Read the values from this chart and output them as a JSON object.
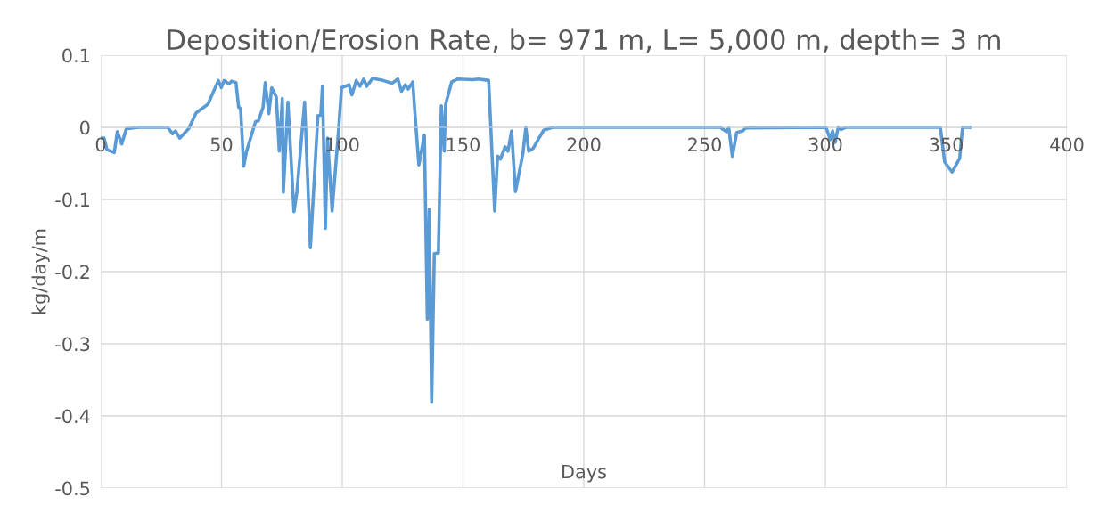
{
  "chart_data": {
    "type": "line",
    "title": "Deposition/Erosion Rate, b= 971 m, L= 5,000 m, depth= 3 m",
    "xlabel": "Days",
    "ylabel": "kg/day/m",
    "x": [
      0,
      1.4,
      2.6,
      5.6,
      6.9,
      8.7,
      10.6,
      15.5,
      27.8,
      29.7,
      31,
      32.7,
      36.4,
      39.5,
      44.4,
      48.7,
      49.9,
      51.1,
      53,
      54.2,
      56,
      57.1,
      57.9,
      59.2,
      60.4,
      64.1,
      65.3,
      67.2,
      68.1,
      69.6,
      70.8,
      72.7,
      73.9,
      75.2,
      75.6,
      77.5,
      80,
      81.2,
      84.4,
      86.8,
      89.9,
      91.1,
      91.8,
      93,
      93.9,
      95.8,
      98.5,
      99.7,
      102.8,
      104,
      105.8,
      107.3,
      108.9,
      110.1,
      112.6,
      116.9,
      120.6,
      123,
      124.5,
      126.1,
      127.3,
      129.2,
      129.9,
      131.7,
      134,
      135.2,
      136,
      137,
      138.1,
      139.8,
      141,
      142.2,
      142.8,
      145.3,
      147.8,
      154,
      156.4,
      160.6,
      163.1,
      164.3,
      165.5,
      167.4,
      168.6,
      170.1,
      171.7,
      174.8,
      176,
      177.2,
      179.1,
      180.9,
      183.4,
      187,
      256.5,
      259,
      260,
      261.5,
      263.3,
      265.8,
      267,
      300.3,
      302,
      303,
      304,
      305.3,
      306.5,
      308.4,
      347.6,
      349.4,
      352.5,
      355.6,
      356.8,
      359.9
    ],
    "series": [
      {
        "color": "#5b9bd5",
        "values": [
          -0.015,
          -0.015,
          -0.031,
          -0.035,
          -0.006,
          -0.023,
          -0.002,
          0,
          0,
          -0.009,
          -0.005,
          -0.015,
          -0.002,
          0.02,
          0.032,
          0.065,
          0.055,
          0.065,
          0.06,
          0.064,
          0.062,
          0.028,
          0.026,
          -0.054,
          -0.033,
          0.008,
          0.009,
          0.028,
          0.062,
          0.019,
          0.055,
          0.042,
          -0.033,
          0.04,
          -0.09,
          0.035,
          -0.117,
          -0.09,
          0.035,
          -0.167,
          0.016,
          0.017,
          0.057,
          -0.14,
          -0.015,
          -0.116,
          -0.002,
          0.055,
          0.059,
          0.045,
          0.065,
          0.057,
          0.067,
          0.057,
          0.068,
          0.065,
          0.061,
          0.067,
          0.05,
          0.059,
          0.053,
          0.063,
          0.028,
          -0.052,
          -0.011,
          -0.266,
          -0.114,
          -0.381,
          -0.175,
          -0.174,
          0.03,
          -0.033,
          0.032,
          0.063,
          0.067,
          0.066,
          0.067,
          0.065,
          -0.116,
          -0.04,
          -0.044,
          -0.027,
          -0.033,
          -0.005,
          -0.089,
          -0.036,
          0,
          -0.033,
          -0.029,
          -0.018,
          -0.004,
          0,
          0,
          -0.006,
          -0.001,
          -0.04,
          -0.007,
          -0.005,
          -0.001,
          0,
          -0.017,
          -0.005,
          -0.021,
          0,
          -0.003,
          0,
          0,
          -0.048,
          -0.062,
          -0.043,
          0,
          0
        ]
      }
    ],
    "xlim": [
      0,
      400
    ],
    "xticks": [
      0,
      50,
      100,
      150,
      200,
      250,
      300,
      350,
      400
    ],
    "ylim": [
      -0.5,
      0.1
    ],
    "yticks": [
      -0.5,
      -0.4,
      -0.3,
      -0.2,
      -0.1,
      0,
      0.1
    ],
    "grid": true,
    "marker": "none",
    "line_style": "solid"
  }
}
